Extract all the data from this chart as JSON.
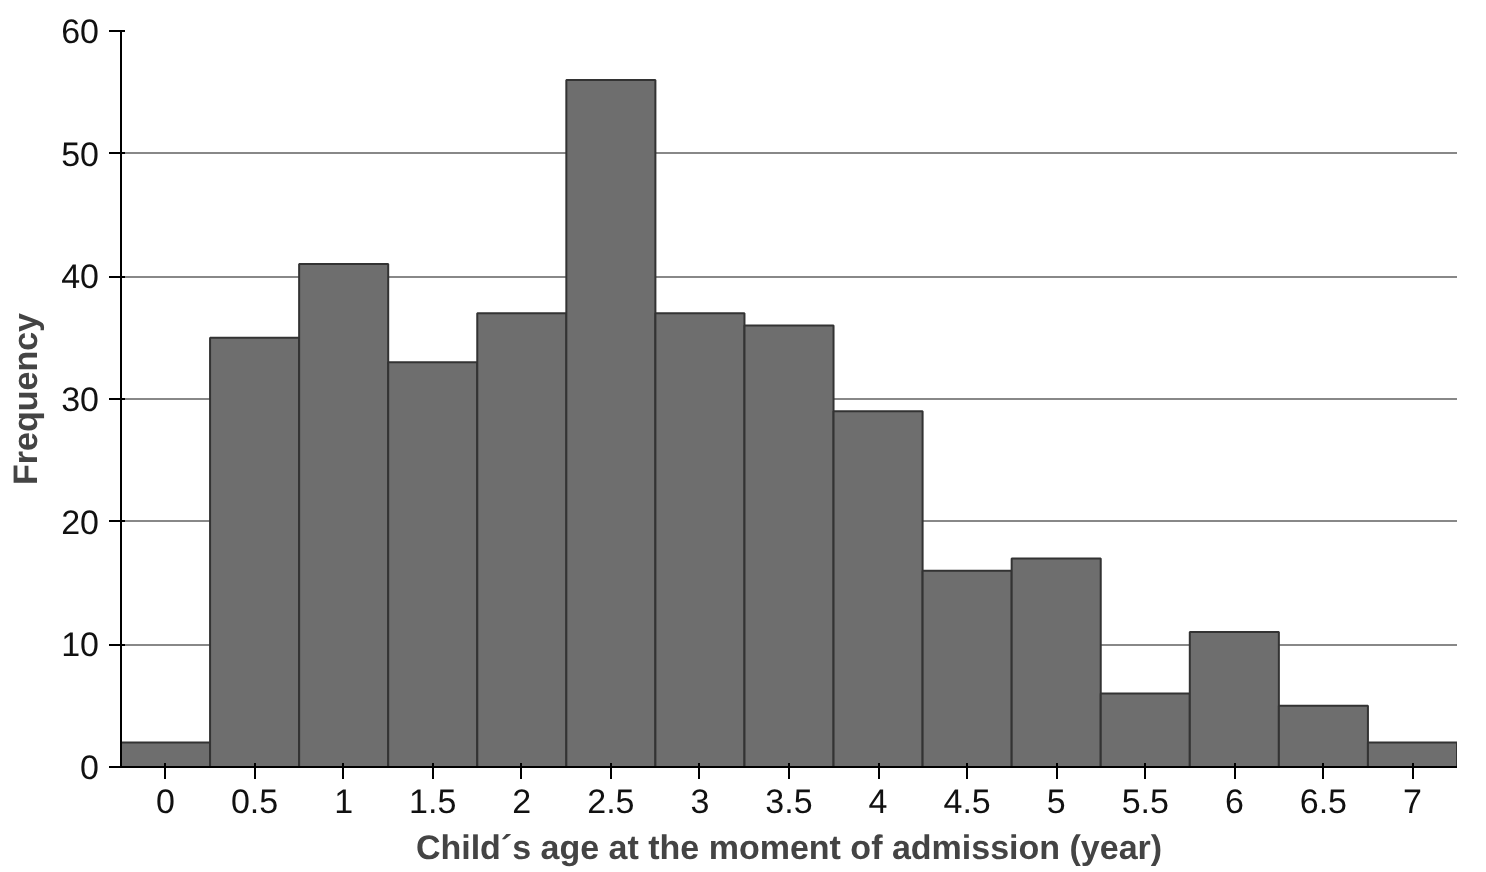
{
  "chart_data": {
    "type": "bar",
    "xlabel": "Child´s age at the moment of admission (year)",
    "ylabel": "Frequency",
    "categories": [
      "0",
      "0.5",
      "1",
      "1.5",
      "2",
      "2.5",
      "3",
      "3.5",
      "4",
      "4.5",
      "5",
      "5.5",
      "6",
      "6.5",
      "7"
    ],
    "values": [
      2,
      35,
      41,
      33,
      37,
      56,
      37,
      36,
      29,
      16,
      17,
      6,
      11,
      5,
      2
    ],
    "color": "#6e6e6e",
    "ylim": [
      0,
      60
    ],
    "yticks": [
      0,
      10,
      20,
      30,
      40,
      50,
      60
    ],
    "grid": "y"
  }
}
